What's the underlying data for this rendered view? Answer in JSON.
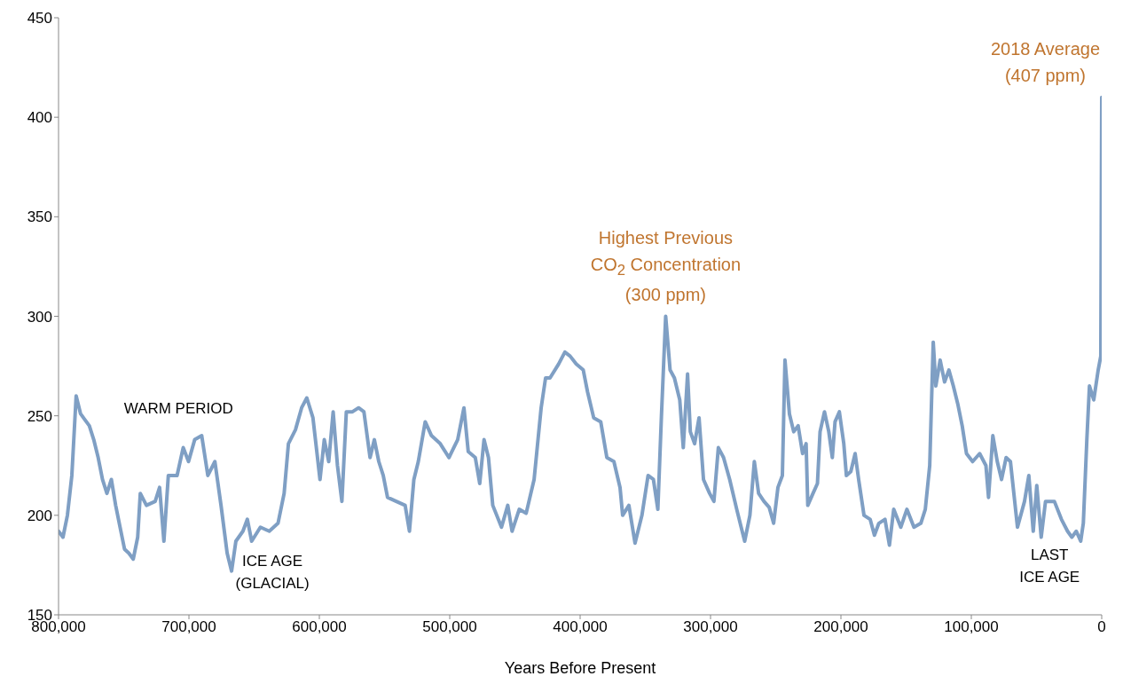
{
  "chart_data": {
    "type": "line",
    "xlabel": "Years Before Present",
    "xlim": [
      800000,
      0
    ],
    "xticks": [
      {
        "value": 800000,
        "label": "800,000"
      },
      {
        "value": 700000,
        "label": "700,000"
      },
      {
        "value": 600000,
        "label": "600,000"
      },
      {
        "value": 500000,
        "label": "500,000"
      },
      {
        "value": 400000,
        "label": "400,000"
      },
      {
        "value": 300000,
        "label": "300,000"
      },
      {
        "value": 200000,
        "label": "200,000"
      },
      {
        "value": 100000,
        "label": "100,000"
      },
      0
    ],
    "ylim": [
      150,
      450
    ],
    "yticks": [
      150,
      200,
      250,
      300,
      350,
      400,
      450
    ],
    "marker": "none",
    "line_style": "solid",
    "annotations": [
      "WARM PERIOD",
      "ICE AGE\n(GLACIAL)",
      "LAST\nICE AGE",
      {
        "text": "Highest Previous\nCO$_{2}$ Concentration\n(300 ppm)",
        "x": 334400,
        "y": 300
      },
      {
        "text": "2018 Average\n(407 ppm)",
        "x": 0,
        "y": 410
      }
    ],
    "series": [
      {
        "color": "#7f9fc4",
        "x": [
          800000,
          796600,
          793200,
          789800,
          786500,
          783100,
          779800,
          776400,
          773000,
          769600,
          766300,
          762900,
          759500,
          756200,
          752800,
          749400,
          746100,
          742700,
          739300,
          737300,
          732600,
          725900,
          722500,
          719200,
          715800,
          709100,
          704400,
          700300,
          695600,
          690200,
          685500,
          680100,
          675400,
          670700,
          667300,
          664000,
          658600,
          655200,
          651900,
          645200,
          638400,
          631700,
          627000,
          623700,
          618300,
          613600,
          609600,
          604900,
          599500,
          596200,
          592800,
          589400,
          586100,
          582700,
          579300,
          574600,
          569900,
          565800,
          561100,
          557800,
          554400,
          551000,
          547700,
          541000,
          534200,
          530900,
          527500,
          524100,
          518800,
          514000,
          507300,
          500600,
          493900,
          489100,
          485800,
          480400,
          477000,
          473700,
          470300,
          467000,
          460300,
          455500,
          452200,
          446700,
          441400,
          435300,
          429900,
          426500,
          423100,
          416500,
          411700,
          407700,
          403000,
          397600,
          394300,
          389600,
          384200,
          379500,
          374100,
          369400,
          367400,
          362600,
          357900,
          352600,
          347900,
          343800,
          340400,
          337700,
          334400,
          331000,
          327700,
          323600,
          320900,
          317600,
          315500,
          312200,
          308800,
          305400,
          300700,
          297400,
          294000,
          290000,
          285300,
          279900,
          276500,
          273800,
          269800,
          266400,
          263100,
          259000,
          255000,
          251600,
          248300,
          244900,
          242900,
          239500,
          236200,
          232800,
          229400,
          226700,
          225400,
          221400,
          218000,
          216000,
          212600,
          209300,
          206600,
          204500,
          201200,
          197800,
          195800,
          192400,
          189100,
          186400,
          182300,
          177600,
          174300,
          170900,
          166200,
          162800,
          159500,
          154100,
          149400,
          144000,
          138700,
          135300,
          131900,
          129200,
          127200,
          123900,
          120500,
          117200,
          113800,
          110400,
          107000,
          103700,
          99000,
          93600,
          88800,
          86800,
          83500,
          80100,
          76800,
          73300,
          70000,
          64600,
          59200,
          55900,
          52500,
          49800,
          46400,
          43100,
          36300,
          30900,
          26200,
          22900,
          19500,
          16100,
          14100,
          11400,
          9400,
          6100,
          2700,
          700,
          0
        ],
        "values": [
          192,
          189,
          200,
          220,
          260,
          251,
          248,
          245,
          238,
          229,
          218,
          211,
          218,
          205,
          194,
          183,
          181,
          178,
          189,
          211,
          205,
          207,
          214,
          187,
          220,
          220,
          234,
          227,
          238,
          240,
          220,
          227,
          205,
          181,
          172,
          187,
          192,
          198,
          187,
          194,
          192,
          196,
          211,
          236,
          243,
          254,
          259,
          249,
          218,
          238,
          227,
          252,
          225,
          207,
          252,
          252,
          254,
          252,
          229,
          238,
          227,
          220,
          209,
          207,
          205,
          192,
          218,
          227,
          247,
          240,
          236,
          229,
          238,
          254,
          232,
          229,
          216,
          238,
          229,
          205,
          194,
          205,
          192,
          203,
          201,
          218,
          254,
          269,
          269,
          276,
          282,
          280,
          276,
          273,
          262,
          249,
          247,
          229,
          227,
          214,
          200,
          205,
          186,
          200,
          220,
          218,
          203,
          249,
          300,
          273,
          269,
          258,
          234,
          271,
          242,
          236,
          249,
          218,
          211,
          207,
          234,
          229,
          218,
          203,
          194,
          187,
          200,
          227,
          211,
          207,
          204,
          196,
          214,
          220,
          278,
          251,
          242,
          245,
          231,
          236,
          205,
          211,
          216,
          242,
          252,
          242,
          229,
          247,
          252,
          236,
          220,
          222,
          231,
          218,
          200,
          198,
          190,
          196,
          198,
          185,
          203,
          194,
          203,
          194,
          196,
          203,
          225,
          287,
          265,
          278,
          267,
          273,
          265,
          256,
          245,
          231,
          227,
          231,
          225,
          209,
          240,
          227,
          218,
          229,
          227,
          194,
          207,
          220,
          192,
          215,
          189,
          207,
          207,
          198,
          192,
          189,
          192,
          187,
          196,
          238,
          265,
          258,
          273,
          280,
          410
        ]
      }
    ]
  }
}
